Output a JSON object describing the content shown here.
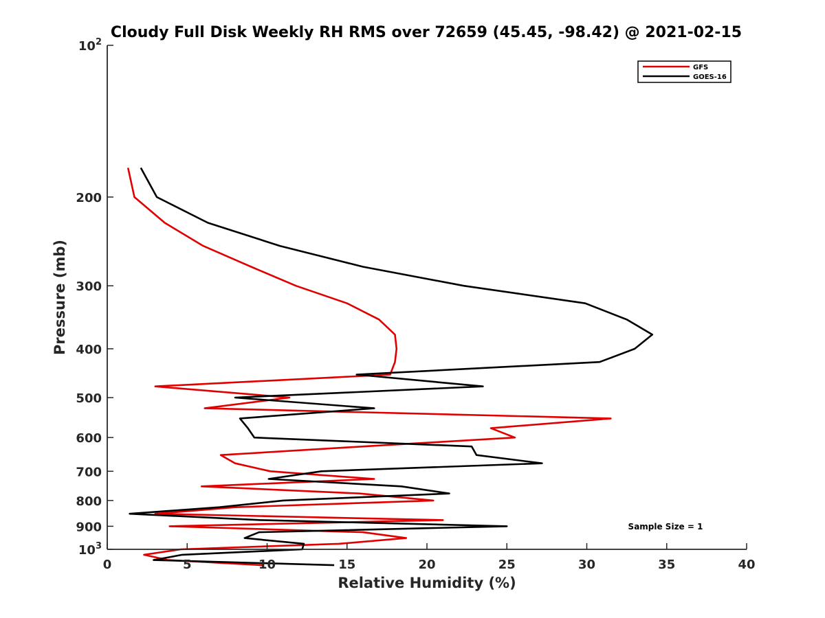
{
  "chart_data": {
    "type": "line",
    "title": "Cloudy Full Disk Weekly RH RMS over 72659 (45.45, -98.42) @ 2021-02-15",
    "xlabel": "Relative Humidity (%)",
    "ylabel": "Pressure (mb)",
    "xlim": [
      0,
      40
    ],
    "ylim": [
      100,
      1000
    ],
    "y_scale": "log",
    "y_reversed": true,
    "grid": false,
    "legend_position": "top-right",
    "x_ticks": [
      "0",
      "5",
      "10",
      "15",
      "20",
      "25",
      "30",
      "35",
      "40"
    ],
    "y_ticks": [
      {
        "value": 100,
        "base": "10",
        "exp": "2"
      },
      {
        "value": 200,
        "label": "200"
      },
      {
        "value": 300,
        "label": "300"
      },
      {
        "value": 400,
        "label": "400"
      },
      {
        "value": 500,
        "label": "500"
      },
      {
        "value": 600,
        "label": "600"
      },
      {
        "value": 700,
        "label": "700"
      },
      {
        "value": 800,
        "label": "800"
      },
      {
        "value": 900,
        "label": "900"
      },
      {
        "value": 1000,
        "base": "10",
        "exp": "3"
      }
    ],
    "annotation": "Sample Size = 1",
    "series": [
      {
        "name": "GFS",
        "color": "#e00000",
        "points": [
          [
            1.3,
            175
          ],
          [
            1.7,
            200
          ],
          [
            3.6,
            225
          ],
          [
            6.0,
            250
          ],
          [
            9.0,
            275
          ],
          [
            11.8,
            300
          ],
          [
            15.0,
            325
          ],
          [
            17.0,
            350
          ],
          [
            18.0,
            375
          ],
          [
            18.1,
            400
          ],
          [
            18.0,
            425
          ],
          [
            17.7,
            450
          ],
          [
            3.0,
            475
          ],
          [
            11.4,
            500
          ],
          [
            6.1,
            525
          ],
          [
            31.5,
            550
          ],
          [
            24.0,
            575
          ],
          [
            25.5,
            600
          ],
          [
            16.0,
            625
          ],
          [
            7.1,
            650
          ],
          [
            8.0,
            675
          ],
          [
            10.2,
            700
          ],
          [
            16.7,
            725
          ],
          [
            5.9,
            750
          ],
          [
            15.8,
            775
          ],
          [
            20.4,
            800
          ],
          [
            8.0,
            825
          ],
          [
            3.0,
            850
          ],
          [
            21.0,
            875
          ],
          [
            3.9,
            900
          ],
          [
            16.0,
            925
          ],
          [
            18.7,
            950
          ],
          [
            14.5,
            975
          ],
          [
            4.6,
            1000
          ],
          [
            2.3,
            1025
          ],
          [
            3.8,
            1050
          ],
          [
            9.7,
            1075
          ]
        ]
      },
      {
        "name": "GOES-16",
        "color": "#000000",
        "points": [
          [
            2.1,
            175
          ],
          [
            3.1,
            200
          ],
          [
            6.3,
            225
          ],
          [
            10.8,
            250
          ],
          [
            16.0,
            275
          ],
          [
            22.3,
            300
          ],
          [
            29.9,
            325
          ],
          [
            32.5,
            350
          ],
          [
            34.1,
            375
          ],
          [
            33.0,
            400
          ],
          [
            30.8,
            425
          ],
          [
            15.6,
            450
          ],
          [
            23.5,
            475
          ],
          [
            8.0,
            500
          ],
          [
            16.7,
            525
          ],
          [
            8.3,
            550
          ],
          [
            8.8,
            575
          ],
          [
            9.2,
            600
          ],
          [
            22.8,
            625
          ],
          [
            23.1,
            650
          ],
          [
            27.2,
            675
          ],
          [
            13.4,
            700
          ],
          [
            10.1,
            725
          ],
          [
            18.4,
            750
          ],
          [
            21.4,
            775
          ],
          [
            11.0,
            800
          ],
          [
            7.0,
            825
          ],
          [
            1.4,
            850
          ],
          [
            9.6,
            875
          ],
          [
            25.0,
            900
          ],
          [
            9.5,
            925
          ],
          [
            8.6,
            950
          ],
          [
            12.3,
            975
          ],
          [
            12.2,
            1000
          ],
          [
            4.7,
            1025
          ],
          [
            2.9,
            1050
          ],
          [
            14.2,
            1075
          ]
        ]
      }
    ]
  }
}
